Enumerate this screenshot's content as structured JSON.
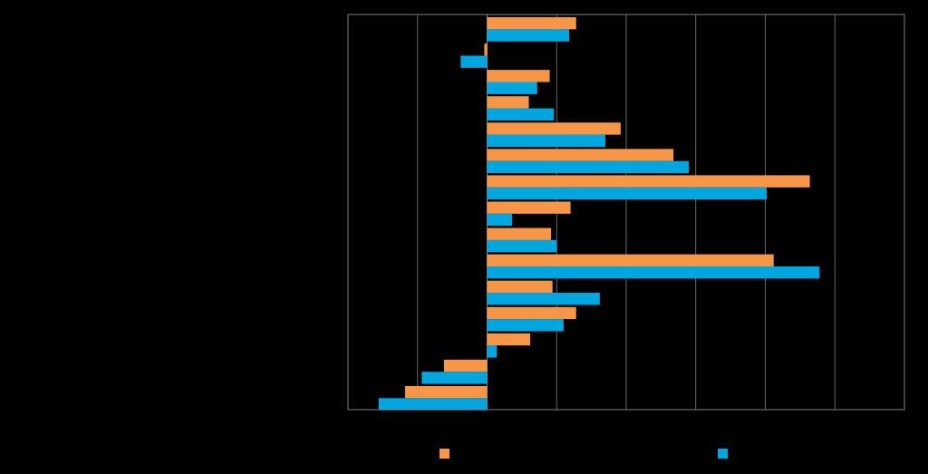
{
  "chart_data": {
    "type": "bar",
    "orientation": "horizontal",
    "categories": [
      "",
      "",
      "",
      "",
      "",
      "",
      "",
      "",
      "",
      "",
      "",
      "",
      "",
      "",
      ""
    ],
    "series": [
      {
        "name": "",
        "color": "#F79646",
        "values": [
          6.4,
          -0.2,
          4.5,
          3.0,
          9.6,
          13.4,
          23.2,
          6.0,
          4.6,
          20.6,
          4.7,
          6.4,
          3.1,
          -3.1,
          -5.9
        ]
      },
      {
        "name": "",
        "color": "#00A6E0",
        "values": [
          5.9,
          -1.9,
          3.6,
          4.8,
          8.5,
          14.5,
          20.1,
          1.8,
          5.0,
          23.9,
          8.1,
          5.5,
          0.7,
          -4.7,
          -7.8
        ]
      }
    ],
    "xlim": [
      -10,
      30
    ],
    "grid": true,
    "legend_position": "bottom",
    "colors": {
      "background": "#000000",
      "gridline": "#808080",
      "axis": "#808080"
    }
  }
}
